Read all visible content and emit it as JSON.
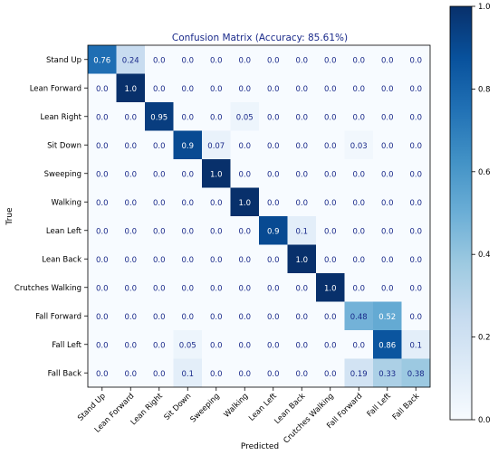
{
  "chart_data": {
    "type": "heatmap",
    "title": "Confusion Matrix (Accuracy: 85.61%)",
    "xlabel": "Predicted",
    "ylabel": "True",
    "categories": [
      "Stand Up",
      "Lean Forward",
      "Lean Right",
      "Sit Down",
      "Sweeping",
      "Walking",
      "Lean Left",
      "Lean Back",
      "Crutches Walking",
      "Fall Forward",
      "Fall Left",
      "Fall Back"
    ],
    "values": [
      [
        0.76,
        0.24,
        0.0,
        0.0,
        0.0,
        0.0,
        0.0,
        0.0,
        0.0,
        0.0,
        0.0,
        0.0
      ],
      [
        0.0,
        1.0,
        0.0,
        0.0,
        0.0,
        0.0,
        0.0,
        0.0,
        0.0,
        0.0,
        0.0,
        0.0
      ],
      [
        0.0,
        0.0,
        0.95,
        0.0,
        0.0,
        0.05,
        0.0,
        0.0,
        0.0,
        0.0,
        0.0,
        0.0
      ],
      [
        0.0,
        0.0,
        0.0,
        0.9,
        0.07,
        0.0,
        0.0,
        0.0,
        0.0,
        0.03,
        0.0,
        0.0
      ],
      [
        0.0,
        0.0,
        0.0,
        0.0,
        1.0,
        0.0,
        0.0,
        0.0,
        0.0,
        0.0,
        0.0,
        0.0
      ],
      [
        0.0,
        0.0,
        0.0,
        0.0,
        0.0,
        1.0,
        0.0,
        0.0,
        0.0,
        0.0,
        0.0,
        0.0
      ],
      [
        0.0,
        0.0,
        0.0,
        0.0,
        0.0,
        0.0,
        0.9,
        0.1,
        0.0,
        0.0,
        0.0,
        0.0
      ],
      [
        0.0,
        0.0,
        0.0,
        0.0,
        0.0,
        0.0,
        0.0,
        1.0,
        0.0,
        0.0,
        0.0,
        0.0
      ],
      [
        0.0,
        0.0,
        0.0,
        0.0,
        0.0,
        0.0,
        0.0,
        0.0,
        1.0,
        0.0,
        0.0,
        0.0
      ],
      [
        0.0,
        0.0,
        0.0,
        0.0,
        0.0,
        0.0,
        0.0,
        0.0,
        0.0,
        0.48,
        0.52,
        0.0
      ],
      [
        0.0,
        0.0,
        0.0,
        0.05,
        0.0,
        0.0,
        0.0,
        0.0,
        0.0,
        0.0,
        0.86,
        0.1
      ],
      [
        0.0,
        0.0,
        0.0,
        0.1,
        0.0,
        0.0,
        0.0,
        0.0,
        0.0,
        0.19,
        0.33,
        0.38
      ]
    ],
    "colorbar": {
      "range": [
        0.0,
        1.0
      ],
      "ticks": [
        "0.0",
        "0.2",
        "0.4",
        "0.6",
        "0.8",
        "1.0"
      ]
    },
    "colormap": {
      "low": "#f7fbff",
      "high": "#08306b",
      "name": "Blues"
    },
    "grid": false
  }
}
